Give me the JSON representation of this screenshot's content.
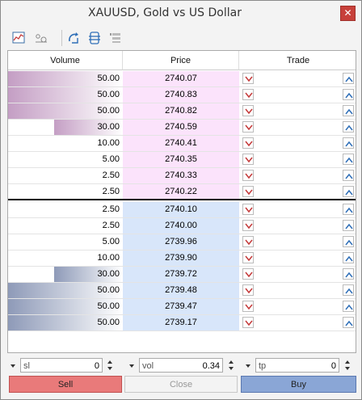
{
  "window": {
    "title": "XAUUSD, Gold vs US Dollar",
    "close_glyph": "✕"
  },
  "toolbar": {
    "icons": [
      "chart-icon",
      "ticks-icon",
      "one-click-trading-icon",
      "center-icon",
      "settings-icon"
    ]
  },
  "headers": {
    "volume": "Volume",
    "price": "Price",
    "trade": "Trade"
  },
  "asks": [
    {
      "volume": "50.00",
      "price": "2740.07",
      "depth": 1.0
    },
    {
      "volume": "50.00",
      "price": "2740.83",
      "depth": 1.0
    },
    {
      "volume": "50.00",
      "price": "2740.82",
      "depth": 1.0
    },
    {
      "volume": "30.00",
      "price": "2740.59",
      "depth": 0.6
    },
    {
      "volume": "10.00",
      "price": "2740.41",
      "depth": 0.0
    },
    {
      "volume": "5.00",
      "price": "2740.35",
      "depth": 0.0
    },
    {
      "volume": "2.50",
      "price": "2740.33",
      "depth": 0.0
    },
    {
      "volume": "2.50",
      "price": "2740.22",
      "depth": 0.0
    }
  ],
  "bids": [
    {
      "volume": "2.50",
      "price": "2740.10",
      "depth": 0.0
    },
    {
      "volume": "2.50",
      "price": "2740.00",
      "depth": 0.0
    },
    {
      "volume": "5.00",
      "price": "2739.96",
      "depth": 0.0
    },
    {
      "volume": "10.00",
      "price": "2739.90",
      "depth": 0.0
    },
    {
      "volume": "30.00",
      "price": "2739.72",
      "depth": 0.6
    },
    {
      "volume": "50.00",
      "price": "2739.48",
      "depth": 1.0
    },
    {
      "volume": "50.00",
      "price": "2739.47",
      "depth": 1.0
    },
    {
      "volume": "50.00",
      "price": "2739.17",
      "depth": 1.0
    }
  ],
  "fields": {
    "sl": {
      "label": "sl",
      "value": "0"
    },
    "vol": {
      "label": "vol",
      "value": "0.34"
    },
    "tp": {
      "label": "tp",
      "value": "0"
    }
  },
  "buttons": {
    "sell": "Sell",
    "close": "Close",
    "buy": "Buy"
  },
  "colors": {
    "ask_bar": "#c49ec4",
    "bid_bar": "#8e9ab8",
    "ask_price_bg": "#fbe3fb",
    "bid_price_bg": "#d8e6fa",
    "sell_button": "#e97a7a",
    "buy_button": "#8aa6d6",
    "down_arrow": "#c43a3a",
    "up_arrow": "#2f6fb8"
  }
}
